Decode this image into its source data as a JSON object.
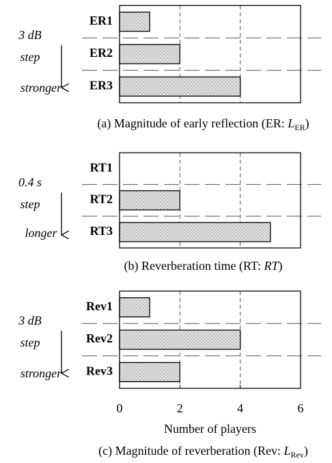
{
  "chart_data": [
    {
      "type": "bar",
      "categories": [
        "ER1",
        "ER2",
        "ER3"
      ],
      "values": [
        1,
        2,
        4
      ],
      "xlim": [
        0,
        6
      ],
      "xticks": [
        0,
        2,
        4,
        6
      ],
      "tick_labels": false,
      "grid": true,
      "annotation": {
        "step_size": "3 dB",
        "step": "step",
        "direction": "stronger"
      },
      "caption": {
        "prefix": "(a) Magnitude of early reflection (ER: ",
        "symbol": "L",
        "subscript": "ER",
        "suffix": ")"
      }
    },
    {
      "type": "bar",
      "categories": [
        "RT1",
        "RT2",
        "RT3"
      ],
      "values": [
        0,
        2,
        5
      ],
      "xlim": [
        0,
        6
      ],
      "xticks": [
        0,
        2,
        4,
        6
      ],
      "tick_labels": false,
      "grid": true,
      "annotation": {
        "step_size": "0.4 s",
        "step": "step",
        "direction": "longer"
      },
      "caption": {
        "prefix": "(b) Reverberation time (RT: ",
        "symbol": "RT",
        "suffix": ")"
      }
    },
    {
      "type": "bar",
      "categories": [
        "Rev1",
        "Rev2",
        "Rev3"
      ],
      "values": [
        1,
        4,
        2
      ],
      "xlim": [
        0,
        6
      ],
      "xticks": [
        0,
        2,
        4,
        6
      ],
      "tick_labels": true,
      "grid": true,
      "xlabel": "Number of players",
      "annotation": {
        "step_size": "3 dB",
        "step": "step",
        "direction": "stronger"
      },
      "caption": {
        "prefix": "(c) Magnitude of reverberation (Rev: ",
        "symbol": "L",
        "subscript": "Rev",
        "suffix": ")"
      }
    }
  ]
}
